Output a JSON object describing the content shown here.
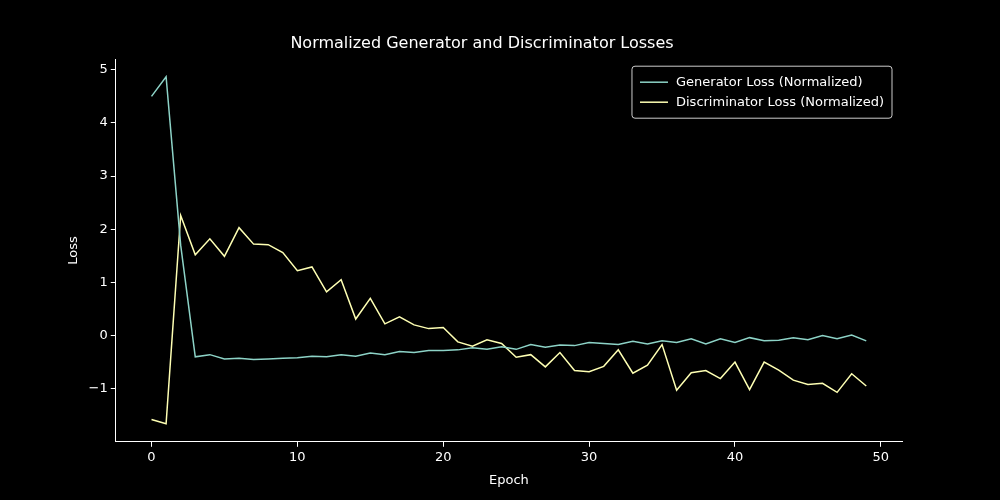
{
  "chart_data": {
    "type": "line",
    "title": "Normalized Generator and Discriminator Losses",
    "x_label": "Epoch",
    "y_label": "Loss",
    "x": [
      0,
      1,
      2,
      3,
      4,
      5,
      6,
      7,
      8,
      9,
      10,
      11,
      12,
      13,
      14,
      15,
      16,
      17,
      18,
      19,
      20,
      21,
      22,
      23,
      24,
      25,
      26,
      27,
      28,
      29,
      30,
      31,
      32,
      33,
      34,
      35,
      36,
      37,
      38,
      39,
      40,
      41,
      42,
      43,
      44,
      45,
      46,
      47,
      48,
      49
    ],
    "series": [
      {
        "name": "Generator Loss (Normalized)",
        "color": "#8dd3c7",
        "values": [
          4.5,
          4.87,
          1.7,
          -0.4,
          -0.36,
          -0.44,
          -0.43,
          -0.45,
          -0.44,
          -0.43,
          -0.42,
          -0.39,
          -0.4,
          -0.36,
          -0.39,
          -0.33,
          -0.36,
          -0.3,
          -0.32,
          -0.28,
          -0.28,
          -0.27,
          -0.23,
          -0.26,
          -0.21,
          -0.26,
          -0.17,
          -0.22,
          -0.18,
          -0.19,
          -0.13,
          -0.15,
          -0.17,
          -0.11,
          -0.16,
          -0.1,
          -0.13,
          -0.06,
          -0.16,
          -0.06,
          -0.13,
          -0.04,
          -0.1,
          -0.09,
          -0.04,
          -0.08,
          0.0,
          -0.06,
          0.01,
          -0.1
        ]
      },
      {
        "name": "Discriminator Loss (Normalized)",
        "color": "#feffb3",
        "values": [
          -1.58,
          -1.66,
          2.26,
          1.52,
          1.82,
          1.49,
          2.03,
          1.72,
          1.71,
          1.56,
          1.22,
          1.29,
          0.82,
          1.05,
          0.31,
          0.7,
          0.22,
          0.35,
          0.2,
          0.13,
          0.15,
          -0.12,
          -0.2,
          -0.08,
          -0.15,
          -0.41,
          -0.36,
          -0.59,
          -0.32,
          -0.66,
          -0.68,
          -0.58,
          -0.27,
          -0.71,
          -0.56,
          -0.17,
          -1.03,
          -0.7,
          -0.66,
          -0.81,
          -0.5,
          -1.02,
          -0.5,
          -0.65,
          -0.84,
          -0.92,
          -0.9,
          -1.07,
          -0.72,
          -0.95
        ]
      }
    ],
    "xlim": [
      -2.45,
      51.45
    ],
    "xticks": [
      0,
      10,
      20,
      30,
      40,
      50
    ],
    "ylim": [
      -2.0,
      5.2
    ],
    "yticks": [
      {
        "value": -1,
        "label": "−1"
      },
      0,
      1,
      2,
      3,
      4,
      5
    ],
    "grid": false,
    "legend": "upper right"
  }
}
